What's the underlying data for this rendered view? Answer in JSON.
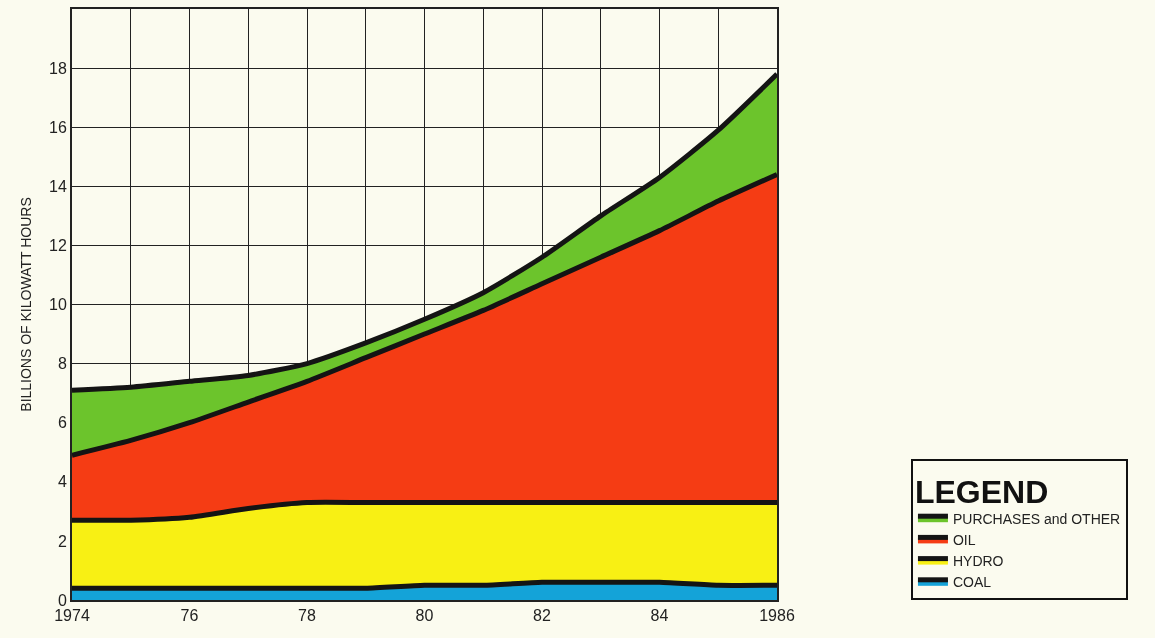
{
  "chart_data": {
    "type": "area",
    "stacked": true,
    "ylabel": "BILLIONS OF KILOWATT HOURS",
    "legend_title": "LEGEND",
    "legend": "right",
    "grid": true,
    "line_style": "solid",
    "marker": "none",
    "x": [
      1974,
      1975,
      1976,
      1977,
      1978,
      1979,
      1980,
      1981,
      1982,
      1983,
      1984,
      1985,
      1986
    ],
    "xlim": [
      1974,
      1986
    ],
    "xticks": [
      1974,
      {
        "value": 1975,
        "label": null
      },
      {
        "value": 1976,
        "label": "76"
      },
      {
        "value": 1977,
        "label": null
      },
      {
        "value": 1978,
        "label": "78"
      },
      {
        "value": 1979,
        "label": null
      },
      {
        "value": 1980,
        "label": "80"
      },
      {
        "value": 1981,
        "label": null
      },
      {
        "value": 1982,
        "label": "82"
      },
      {
        "value": 1983,
        "label": null
      },
      {
        "value": 1984,
        "label": "84"
      },
      {
        "value": 1985,
        "label": null
      },
      1986
    ],
    "ylim": [
      0,
      20
    ],
    "yticks": [
      0,
      2,
      4,
      6,
      8,
      10,
      12,
      14,
      16,
      18,
      {
        "value": 20,
        "label": null
      }
    ],
    "series": [
      {
        "name": "COAL",
        "color": "#14a3d8",
        "values": [
          0.4,
          0.4,
          0.4,
          0.4,
          0.4,
          0.4,
          0.5,
          0.5,
          0.6,
          0.6,
          0.6,
          0.5,
          0.5
        ]
      },
      {
        "name": "HYDRO",
        "color": "#f8f014",
        "values": [
          2.3,
          2.3,
          2.4,
          2.7,
          2.9,
          2.9,
          2.8,
          2.8,
          2.7,
          2.7,
          2.7,
          2.8,
          2.8
        ]
      },
      {
        "name": "OIL",
        "color": "#f53c14",
        "values": [
          2.2,
          2.7,
          3.2,
          3.6,
          4.1,
          4.9,
          5.7,
          6.5,
          7.4,
          8.3,
          9.2,
          10.2,
          11.1
        ]
      },
      {
        "name": "PURCHASES and OTHER",
        "color": "#6cc42c",
        "values": [
          2.2,
          1.8,
          1.4,
          0.9,
          0.6,
          0.5,
          0.5,
          0.6,
          0.9,
          1.4,
          1.8,
          2.4,
          3.4
        ]
      }
    ]
  }
}
